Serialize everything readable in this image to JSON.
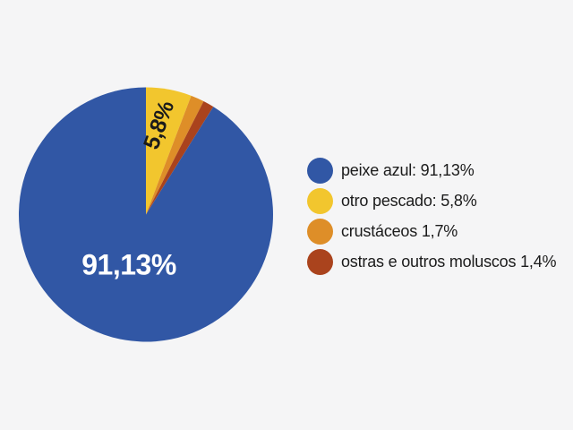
{
  "background_color": "#f5f5f6",
  "chart_data": {
    "type": "pie",
    "unit": "%",
    "decimal_separator": ",",
    "rotation_start": "top",
    "direction": "clockwise",
    "slices": [
      {
        "name": "otro pescado",
        "value": 5.8,
        "color": "#f2c62e"
      },
      {
        "name": "crustáceos",
        "value": 1.7,
        "color": "#de8e28"
      },
      {
        "name": "ostras e outros moluscos",
        "value": 1.4,
        "color": "#aa431d"
      },
      {
        "name": "peixe azul",
        "value": 91.13,
        "color": "#3157a5"
      }
    ],
    "labels_on_chart": [
      {
        "text": "91,13%",
        "slice": "peixe azul",
        "color": "#ffffff"
      },
      {
        "text": "5,8%",
        "slice": "otro pescado",
        "color": "#1b1b1b"
      }
    ],
    "legend_position": "right"
  },
  "legend": {
    "items": [
      {
        "label": "peixe azul: 91,13%",
        "color": "#3157a5"
      },
      {
        "label": "otro pescado: 5,8%",
        "color": "#f2c62e"
      },
      {
        "label": "crustáceos 1,7%",
        "color": "#de8e28"
      },
      {
        "label": "ostras e outros moluscos 1,4%",
        "color": "#aa431d"
      }
    ]
  }
}
